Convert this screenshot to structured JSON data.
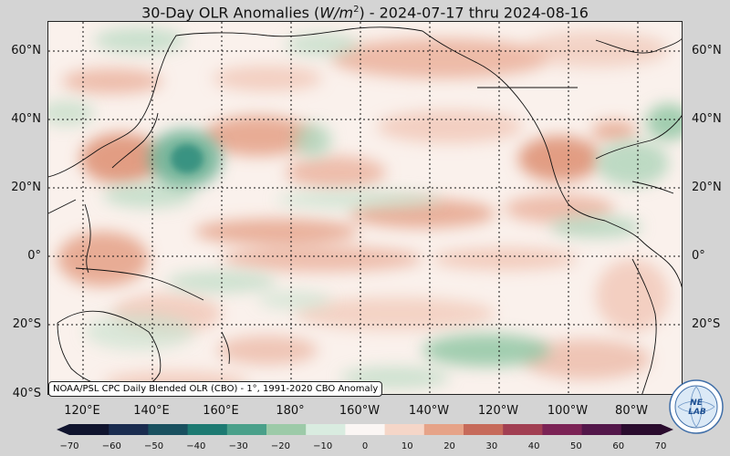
{
  "title": {
    "prefix": "30-Day OLR Anomalies (",
    "unit_base": "W/m",
    "unit_exp": "2",
    "suffix": ") - 2024-07-17 thru 2024-08-16"
  },
  "map": {
    "lat_labels_left": [
      "60°N",
      "40°N",
      "20°N",
      "0°",
      "20°S",
      "40°S"
    ],
    "lat_labels_right": [
      "60°N",
      "40°N",
      "20°N",
      "0°",
      "20°S"
    ],
    "lon_labels": [
      "120°E",
      "140°E",
      "160°E",
      "180°",
      "160°W",
      "140°W",
      "120°W",
      "100°W",
      "80°W"
    ],
    "background_color": "#faf1ec",
    "positive_color": "#e0957a",
    "negative_color": "#8cc4a0",
    "strong_negative_color": "#2e8c7d",
    "land_outline_color": "#111111",
    "gridline_style": "dotted"
  },
  "source_note": "NOAA/PSL CPC Daily Blended OLR (CBO) - 1°, 1991-2020 CBO Anomaly",
  "colorbar": {
    "ticks": [
      "−70",
      "−60",
      "−50",
      "−40",
      "−30",
      "−20",
      "−10",
      "0",
      "10",
      "20",
      "30",
      "40",
      "50",
      "60",
      "70"
    ],
    "colors": [
      "#10142e",
      "#1a2c4f",
      "#19505f",
      "#1d7a72",
      "#4aa08a",
      "#9ccaa8",
      "#d9ece0",
      "#fbf6f4",
      "#f5d6c8",
      "#e6a388",
      "#c66a5a",
      "#a13f52",
      "#7b2355",
      "#53174a",
      "#2a0c2e"
    ]
  },
  "logo": {
    "text_top": "NE",
    "text_bottom": "LAB"
  }
}
